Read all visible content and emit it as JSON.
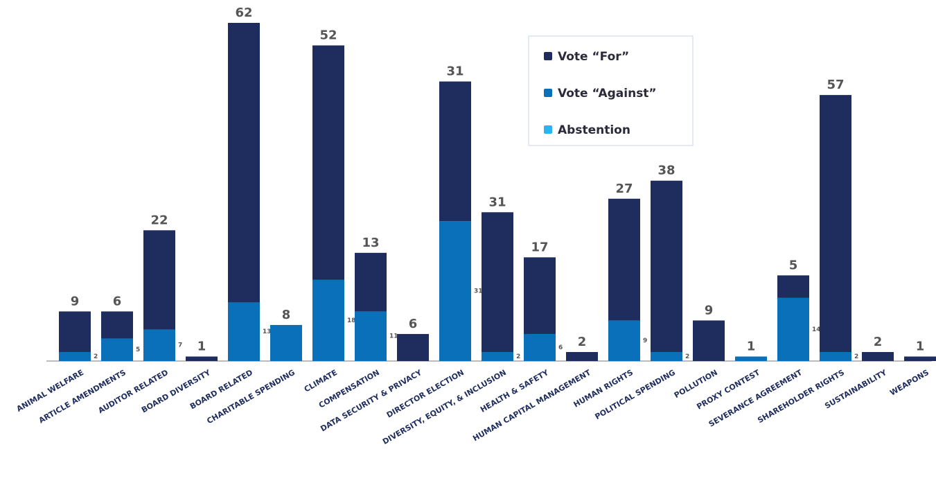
{
  "chart_data": {
    "type": "stacked_bar",
    "categories": [
      "ANIMAL WELFARE",
      "ARTICLE AMENDMENTS",
      "AUDITOR RELATED",
      "BOARD DIVERSITY",
      "BOARD RELATED",
      "CHARITABLE SPENDING",
      "CLIMATE",
      "COMPENSATION",
      "DATA SECURITY & PRIVACY",
      "DIRECTOR ELECTION",
      "DIVERSITY, EQUITY, & INCLUSION",
      "HEALTH & SAFETY",
      "HUMAN CAPITAL MANAGEMENT",
      "HUMAN RIGHTS",
      "POLITICAL SPENDING",
      "POLLUTION",
      "PROXY CONTEST",
      "SEVERANCE AGREEMENT",
      "SHAREHOLDER RIGHTS",
      "SUSTAINABILITY",
      "WEAPONS"
    ],
    "series": [
      {
        "name": "Vote “For”",
        "color": "#1f2d5e",
        "values": [
          9,
          6,
          22,
          1,
          62,
          null,
          52,
          13,
          6,
          31,
          31,
          17,
          2,
          27,
          38,
          9,
          null,
          5,
          57,
          2,
          1
        ]
      },
      {
        "name": "Vote “Against”",
        "color": "#0a70ba",
        "values": [
          2,
          5,
          7,
          null,
          13,
          8,
          18,
          11,
          null,
          31,
          2,
          6,
          null,
          9,
          2,
          null,
          1,
          14,
          2,
          null,
          null
        ]
      },
      {
        "name": "Abstention",
        "color": "#29b6f0",
        "values": [
          null,
          null,
          null,
          null,
          null,
          null,
          null,
          null,
          null,
          null,
          null,
          null,
          null,
          null,
          null,
          null,
          null,
          null,
          null,
          null,
          null
        ]
      }
    ],
    "legend": "top-right"
  }
}
